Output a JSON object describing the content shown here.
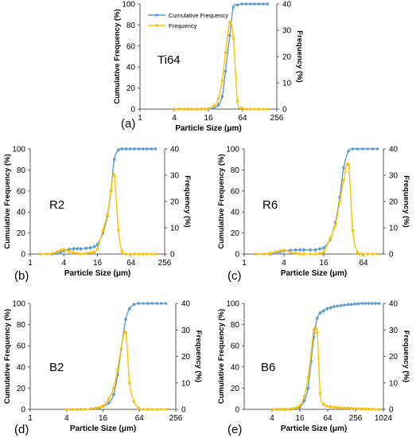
{
  "colors": {
    "cumulative": "#5B9BD5",
    "frequency": "#FFC000",
    "axis": "#595959",
    "text": "#000000"
  },
  "chart_data": [
    {
      "type": "line",
      "panel_label": "(a)",
      "inset_label": "Ti64",
      "xlabel": "Particle Size (μm)",
      "ylabel_left": "Cumulative Frequency (%)",
      "ylabel_right": "Frequency (%)",
      "x_scale": "log2",
      "x_ticks": [
        "1",
        "4",
        "16",
        "64",
        "256"
      ],
      "xlim": [
        1,
        256
      ],
      "ylim_left": [
        0,
        100
      ],
      "ylim_right": [
        0,
        40
      ],
      "y_ticks_left": [
        "0",
        "20",
        "40",
        "60",
        "80",
        "100"
      ],
      "y_ticks_right": [
        "0",
        "10",
        "20",
        "30",
        "40"
      ],
      "legend": [
        "Cumulative Frequency",
        "Frequency"
      ],
      "legend_position": "top-left",
      "series": [
        {
          "name": "Cumulative Frequency",
          "axis": "left",
          "x": [
            4,
            5,
            6,
            7,
            8,
            10,
            12,
            14,
            16,
            20,
            24,
            28,
            32,
            38,
            44,
            52,
            62,
            74,
            88,
            104,
            124,
            148,
            176
          ],
          "y": [
            0,
            0,
            0,
            0,
            0,
            0,
            0,
            0,
            0,
            1,
            4,
            12,
            36,
            70,
            97,
            99,
            100,
            100,
            100,
            100,
            100,
            100,
            100
          ]
        },
        {
          "name": "Frequency",
          "axis": "right",
          "x": [
            4,
            5,
            6,
            7,
            8,
            10,
            12,
            14,
            16,
            20,
            24,
            28,
            32,
            38,
            44,
            52,
            62,
            74,
            88,
            104,
            124,
            148,
            176
          ],
          "y": [
            0,
            0,
            0,
            0,
            0,
            0,
            0,
            0,
            0.2,
            1.2,
            4,
            11,
            21.5,
            33,
            27,
            3,
            0.5,
            0,
            0,
            0,
            0,
            0,
            0
          ]
        }
      ]
    },
    {
      "type": "line",
      "panel_label": "(b)",
      "inset_label": "R2",
      "xlabel": "Particle Size (μm)",
      "ylabel_left": "Cumulative Frequency (%)",
      "ylabel_right": "Frequency (%)",
      "x_scale": "log2",
      "x_ticks": [
        "1",
        "4",
        "16",
        "64",
        "256"
      ],
      "xlim": [
        1,
        256
      ],
      "ylim_left": [
        0,
        100
      ],
      "ylim_right": [
        0,
        40
      ],
      "y_ticks_left": [
        "0",
        "20",
        "40",
        "60",
        "80",
        "100"
      ],
      "y_ticks_right": [
        "0",
        "10",
        "20",
        "30",
        "40"
      ],
      "series": [
        {
          "name": "Cumulative Frequency",
          "axis": "left",
          "x": [
            1.5,
            2,
            2.5,
            3,
            3.5,
            4,
            5,
            6,
            7,
            8,
            10,
            12,
            14,
            16,
            20,
            24,
            28,
            32,
            38,
            44,
            52,
            62,
            74,
            88,
            104,
            124,
            148,
            176
          ],
          "y": [
            0,
            0,
            0,
            1,
            2,
            3,
            4.5,
            5,
            5,
            5,
            5.5,
            6,
            7,
            9,
            20,
            36,
            60,
            90,
            99,
            100,
            100,
            100,
            100,
            100,
            100,
            100,
            100,
            100
          ]
        },
        {
          "name": "Frequency",
          "axis": "right",
          "x": [
            1.5,
            2,
            2.5,
            3,
            3.5,
            4,
            5,
            6,
            7,
            8,
            10,
            12,
            14,
            16,
            20,
            24,
            28,
            32,
            38,
            44,
            52,
            62,
            74,
            88,
            104,
            124,
            148,
            176
          ],
          "y": [
            0,
            0,
            0.3,
            0.8,
            1.5,
            1.8,
            1,
            0.5,
            0.2,
            0,
            0.3,
            0.5,
            0.8,
            2,
            9,
            15,
            24,
            30,
            9,
            1,
            0,
            0,
            0,
            0,
            0,
            0,
            0,
            0
          ]
        }
      ]
    },
    {
      "type": "line",
      "panel_label": "(c)",
      "inset_label": "R6",
      "xlabel": "Particle Size (μm)",
      "ylabel_left": "Cumulative Frequency (%)",
      "ylabel_right": "Frequency (%)",
      "x_scale": "log2",
      "x_ticks": [
        "1",
        "4",
        "16",
        "64"
      ],
      "xlim": [
        1,
        128
      ],
      "ylim_left": [
        0,
        100
      ],
      "ylim_right": [
        0,
        40
      ],
      "y_ticks_left": [
        "0",
        "20",
        "40",
        "60",
        "80",
        "100"
      ],
      "y_ticks_right": [
        "0",
        "10",
        "20",
        "30",
        "40"
      ],
      "series": [
        {
          "name": "Cumulative Frequency",
          "axis": "left",
          "x": [
            1.5,
            2,
            2.5,
            3,
            3.5,
            4,
            5,
            6,
            7,
            8,
            10,
            12,
            14,
            16,
            20,
            24,
            28,
            32,
            38,
            44,
            52,
            62,
            74,
            88,
            104
          ],
          "y": [
            0,
            0,
            0,
            1,
            2,
            3,
            3.5,
            4,
            4,
            4,
            4,
            4,
            5,
            6,
            14,
            30,
            54,
            82,
            98,
            100,
            100,
            100,
            100,
            100,
            100
          ]
        },
        {
          "name": "Frequency",
          "axis": "right",
          "x": [
            1.5,
            2,
            2.5,
            3,
            3.5,
            4,
            5,
            6,
            7,
            8,
            10,
            12,
            14,
            16,
            20,
            24,
            28,
            32,
            38,
            44,
            52,
            62,
            74,
            88,
            104
          ],
          "y": [
            0,
            0,
            0.3,
            0.8,
            1.3,
            1.5,
            0.7,
            0.3,
            0,
            0,
            0,
            0,
            0.3,
            0.8,
            6,
            11,
            20,
            28,
            34,
            9,
            0.5,
            0,
            0,
            0,
            0
          ]
        }
      ]
    },
    {
      "type": "line",
      "panel_label": "(d)",
      "inset_label": "B2",
      "xlabel": "Particle Size (μm)",
      "ylabel_left": "Cumulative Frequency (%)",
      "ylabel_right": "Frequency (%)",
      "x_scale": "log2",
      "x_ticks": [
        "1",
        "4",
        "16",
        "64",
        "256"
      ],
      "xlim": [
        1,
        256
      ],
      "ylim_left": [
        0,
        100
      ],
      "ylim_right": [
        0,
        40
      ],
      "y_ticks_left": [
        "0",
        "20",
        "40",
        "60",
        "80",
        "100"
      ],
      "y_ticks_right": [
        "0",
        "10",
        "20",
        "30",
        "40"
      ],
      "series": [
        {
          "name": "Cumulative Frequency",
          "axis": "left",
          "x": [
            4,
            5,
            6,
            7,
            8,
            10,
            12,
            14,
            16,
            20,
            24,
            28,
            32,
            38,
            44,
            52,
            62,
            74,
            88,
            104,
            124,
            148,
            176
          ],
          "y": [
            0,
            0,
            0,
            0,
            0,
            0.5,
            1,
            1.5,
            3,
            6,
            14,
            33,
            57,
            85,
            95,
            99,
            100,
            100,
            100,
            100,
            100,
            100,
            100
          ]
        },
        {
          "name": "Frequency",
          "axis": "right",
          "x": [
            4,
            5,
            6,
            7,
            8,
            10,
            12,
            14,
            16,
            20,
            24,
            28,
            32,
            38,
            44,
            52,
            62,
            74,
            88,
            104,
            124,
            148,
            176
          ],
          "y": [
            0,
            0,
            0,
            0,
            0,
            0.2,
            0.5,
            0.8,
            1.3,
            4,
            8,
            15,
            23,
            29,
            10,
            3,
            0.5,
            0,
            0,
            0,
            0,
            0,
            0
          ]
        }
      ]
    },
    {
      "type": "line",
      "panel_label": "(e)",
      "inset_label": "B6",
      "xlabel": "Particle Size (μm)",
      "ylabel_left": "Cumulative Frequency (%)",
      "ylabel_right": "Frequency (%)",
      "x_scale": "log2",
      "x_ticks": [
        "4",
        "16",
        "64",
        "256",
        "1024"
      ],
      "xlim": [
        1,
        1024
      ],
      "ylim_left": [
        0,
        100
      ],
      "ylim_right": [
        0,
        40
      ],
      "y_ticks_left": [
        "0",
        "20",
        "40",
        "60",
        "80",
        "100"
      ],
      "y_ticks_right": [
        "0",
        "10",
        "20",
        "30",
        "40"
      ],
      "series": [
        {
          "name": "Cumulative Frequency",
          "axis": "left",
          "x": [
            4,
            5,
            6,
            7,
            8,
            10,
            12,
            14,
            16,
            20,
            24,
            28,
            32,
            38,
            44,
            52,
            62,
            74,
            88,
            104,
            124,
            148,
            176,
            208,
            248,
            296,
            352,
            416,
            496,
            592,
            704,
            832
          ],
          "y": [
            0,
            0,
            0,
            0,
            0,
            0,
            0.5,
            1,
            2,
            8,
            20,
            45,
            68,
            86,
            91,
            93,
            95,
            96,
            97,
            97.5,
            98,
            98.5,
            99,
            99,
            99.5,
            99.7,
            100,
            100,
            100,
            100,
            100,
            100
          ]
        },
        {
          "name": "Frequency",
          "axis": "right",
          "x": [
            4,
            5,
            6,
            7,
            8,
            10,
            12,
            14,
            16,
            20,
            24,
            28,
            32,
            38,
            44,
            52,
            62,
            74,
            88,
            104,
            124,
            148,
            176,
            208,
            248,
            296,
            352,
            416,
            496,
            592,
            704,
            832
          ],
          "y": [
            0,
            0,
            0,
            0,
            0,
            0.2,
            0.4,
            0.7,
            1.5,
            5,
            12,
            21,
            30,
            29,
            6,
            2,
            1.2,
            1,
            0.8,
            0.7,
            0.6,
            0.5,
            0.5,
            0.4,
            0.3,
            0.3,
            0.2,
            0.2,
            0.1,
            0.1,
            0,
            0
          ]
        }
      ]
    }
  ]
}
